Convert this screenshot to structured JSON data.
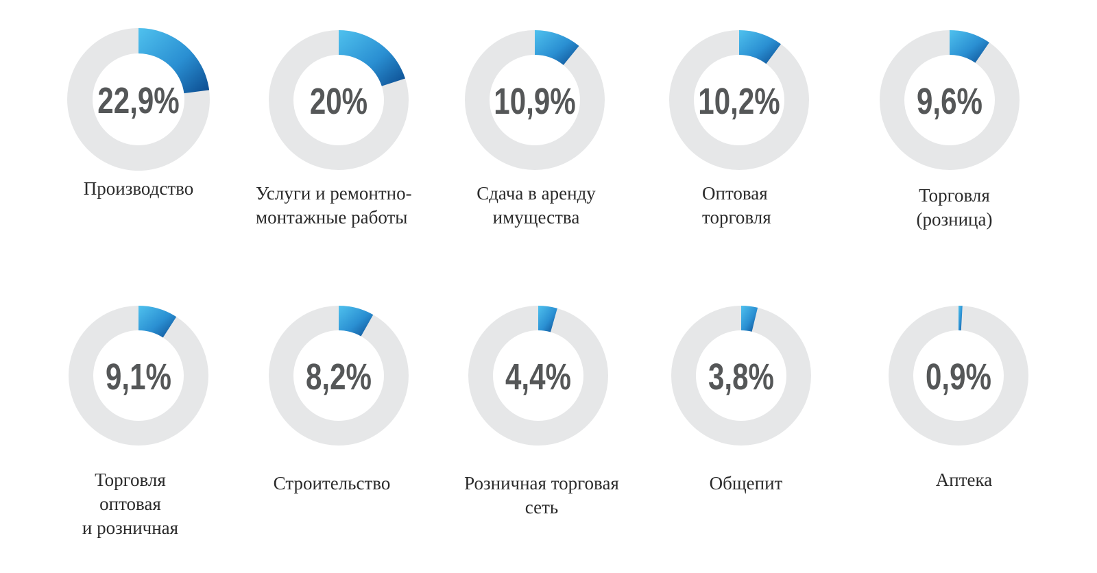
{
  "colors": {
    "track": "#e6e7e8",
    "gradient_start": "#4fc1ee",
    "gradient_mid": "#2a8fd2",
    "gradient_end": "#0b4a8e",
    "value_text": "#555758",
    "label_text": "#2b2b2b"
  },
  "chart_data": {
    "type": "donut",
    "items": [
      {
        "id": "proizvodstvo",
        "value": 22.9,
        "value_label": "22,9%",
        "label": "Производство"
      },
      {
        "id": "uslugi",
        "value": 20,
        "value_label": "20%",
        "label": "Услуги и ремонтно-\nмонтажные работы"
      },
      {
        "id": "sdacha",
        "value": 10.9,
        "value_label": "10,9%",
        "label": "Сдача в аренду\nимущества"
      },
      {
        "id": "optovaya",
        "value": 10.2,
        "value_label": "10,2%",
        "label": "Оптовая\nторговля"
      },
      {
        "id": "roznica",
        "value": 9.6,
        "value_label": "9,6%",
        "label": "Торговля\n(розница)"
      },
      {
        "id": "opt-rozn",
        "value": 9.1,
        "value_label": "9,1%",
        "label": "Торговля\nоптовая\nи розничная"
      },
      {
        "id": "stroitelstvo",
        "value": 8.2,
        "value_label": "8,2%",
        "label": "Строительство"
      },
      {
        "id": "set",
        "value": 4.4,
        "value_label": "4,4%",
        "label": "Розничная торговая\nсеть"
      },
      {
        "id": "obshchepit",
        "value": 3.8,
        "value_label": "3,8%",
        "label": "Общепит"
      },
      {
        "id": "apteka",
        "value": 0.9,
        "value_label": "0,9%",
        "label": "Аптека"
      }
    ]
  }
}
